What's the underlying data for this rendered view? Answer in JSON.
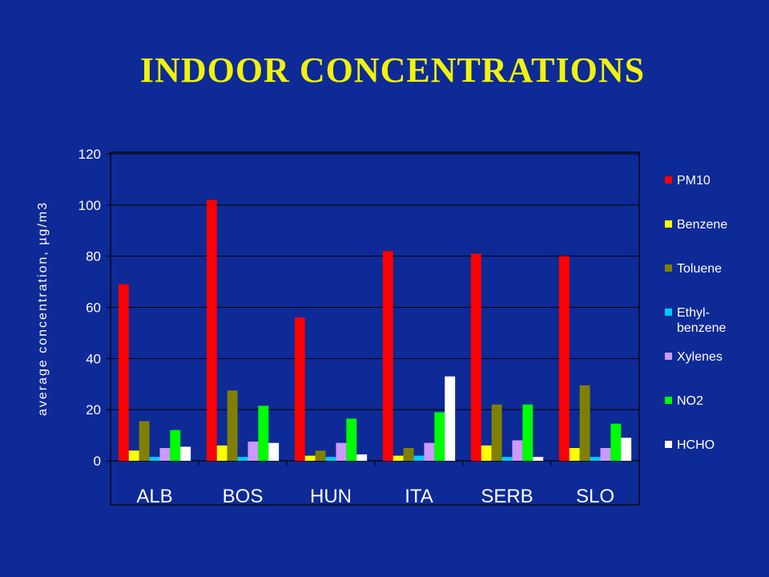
{
  "slide": {
    "title": "INDOOR CONCENTRATIONS"
  },
  "chart_data": {
    "type": "bar",
    "title": "",
    "xlabel": "",
    "ylabel": "average concentration, µg/m3",
    "ylim": [
      0,
      120
    ],
    "yticks": [
      0,
      20,
      40,
      60,
      80,
      100,
      120
    ],
    "grid": "horizontal",
    "legend_position": "right",
    "categories": [
      "ALB",
      "BOS",
      "HUN",
      "ITA",
      "SERB",
      "SLO"
    ],
    "series": [
      {
        "name": "PM10",
        "color": "#ff0000",
        "values": [
          69,
          102,
          56,
          82,
          81,
          80
        ]
      },
      {
        "name": "Benzene",
        "color": "#ffff00",
        "values": [
          4,
          6,
          2,
          2,
          6,
          5
        ]
      },
      {
        "name": "Toluene",
        "color": "#808000",
        "values": [
          15.5,
          27.5,
          4,
          5,
          22,
          29.5
        ]
      },
      {
        "name": "Ethyl-\nbenzene",
        "color": "#00ccff",
        "values": [
          1.5,
          1.5,
          1.5,
          2,
          1.5,
          1.5
        ]
      },
      {
        "name": "Xylenes",
        "color": "#cc99ff",
        "values": [
          5,
          7.5,
          7,
          7,
          8,
          5
        ]
      },
      {
        "name": "NO2",
        "color": "#00ff00",
        "values": [
          12,
          21.5,
          16.5,
          19,
          22,
          14.5
        ]
      },
      {
        "name": "HCHO",
        "color": "#ffffff",
        "values": [
          5.5,
          7,
          2.5,
          33,
          1.5,
          9
        ]
      }
    ]
  }
}
